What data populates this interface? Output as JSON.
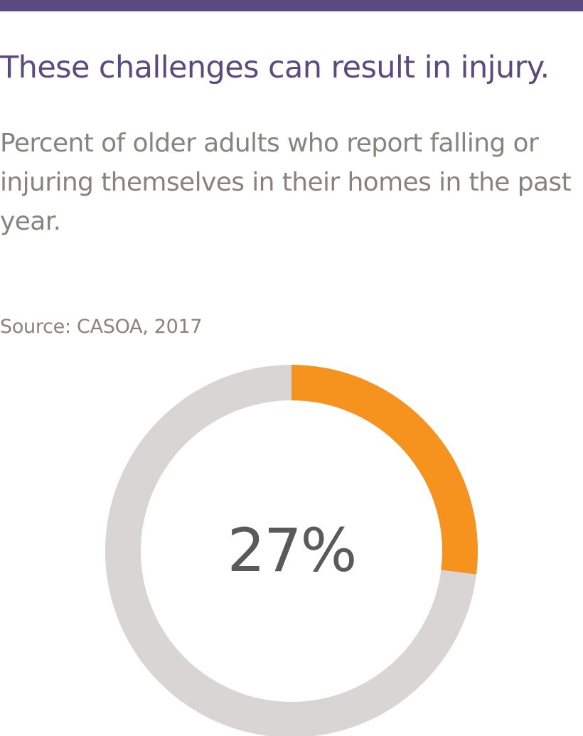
{
  "header": {
    "title": "These challenges can result in injury.",
    "subtitle": "Percent of older adults who report falling or injuring themselves in their homes in the past year.",
    "source": "Source: CASOA, 2017"
  },
  "colors": {
    "bar": "#5b4a7f",
    "title": "#5b4a7f",
    "text": "#8a827d",
    "accent": "#f6921e",
    "track": "#d8d5d4",
    "value": "#5a5a5a"
  },
  "chart_data": {
    "type": "pie",
    "style": "donut",
    "slices": [
      {
        "value": 27,
        "color": "#f6921e"
      },
      {
        "value": 73,
        "color": "#d8d5d4"
      }
    ],
    "center_label": "27%"
  }
}
